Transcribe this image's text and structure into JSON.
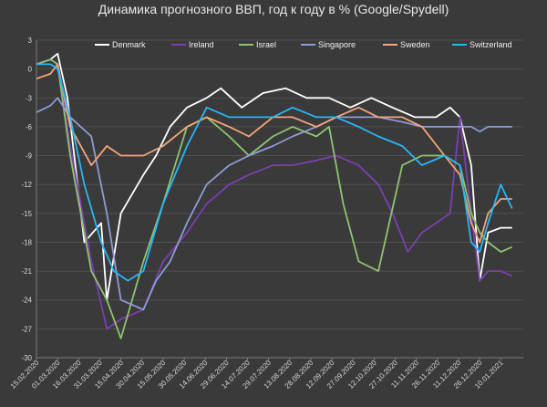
{
  "chart_data": {
    "type": "line",
    "title": "Динамика прогнозного ВВП, год к году в % (Google/Spydell)",
    "xlabel": "",
    "ylabel": "",
    "ylim": [
      -30,
      3
    ],
    "yticks": [
      3,
      0,
      -3,
      -6,
      -9,
      -12,
      -15,
      -18,
      -21,
      -24,
      -27,
      -30
    ],
    "x_tick_labels": [
      "15.02.2020",
      "01.03.2020",
      "16.03.2020",
      "31.03.2020",
      "15.04.2020",
      "30.04.2020",
      "15.05.2020",
      "30.05.2020",
      "14.06.2020",
      "29.06.2020",
      "14.07.2020",
      "29.07.2020",
      "13.08.2020",
      "28.08.2020",
      "12.09.2020",
      "27.09.2020",
      "12.10.2020",
      "27.10.2020",
      "11.11.2020",
      "26.11.2020",
      "11.12.2020",
      "26.12.2020",
      "10.01.2021"
    ],
    "grid": true,
    "legend_position": "top",
    "series": [
      {
        "name": "Denmark",
        "color": "#ffffff",
        "x": [
          "2020-02-15",
          "2020-02-25",
          "2020-03-01",
          "2020-03-08",
          "2020-03-20",
          "2020-04-01",
          "2020-04-05",
          "2020-04-15",
          "2020-05-01",
          "2020-05-10",
          "2020-05-20",
          "2020-06-01",
          "2020-06-15",
          "2020-06-25",
          "2020-07-10",
          "2020-07-25",
          "2020-08-10",
          "2020-08-25",
          "2020-09-10",
          "2020-09-25",
          "2020-10-10",
          "2020-10-25",
          "2020-11-10",
          "2020-11-25",
          "2020-12-05",
          "2020-12-12",
          "2020-12-20",
          "2020-12-26",
          "2021-01-01",
          "2021-01-10",
          "2021-01-18"
        ],
        "values": [
          0.5,
          1.0,
          1.6,
          -3,
          -18,
          -16,
          -24,
          -15,
          -11,
          -9,
          -6,
          -4,
          -3,
          -2,
          -4,
          -2.5,
          -2,
          -3,
          -3,
          -4,
          -3,
          -4,
          -5,
          -5,
          -4,
          -5,
          -10,
          -22,
          -17,
          -16.5,
          -16.5
        ]
      },
      {
        "name": "Ireland",
        "color": "#7b3fb0",
        "x": [
          "2020-02-15",
          "2020-02-25",
          "2020-03-01",
          "2020-03-10",
          "2020-03-25",
          "2020-04-05",
          "2020-04-15",
          "2020-05-01",
          "2020-05-15",
          "2020-06-01",
          "2020-06-15",
          "2020-07-01",
          "2020-07-15",
          "2020-08-01",
          "2020-08-15",
          "2020-09-01",
          "2020-09-15",
          "2020-10-01",
          "2020-10-15",
          "2020-10-25",
          "2020-11-05",
          "2020-11-15",
          "2020-11-25",
          "2020-12-05",
          "2020-12-12",
          "2020-12-20",
          "2020-12-26",
          "2021-01-01",
          "2021-01-10",
          "2021-01-18"
        ],
        "values": [
          0.5,
          1.0,
          0.5,
          -8,
          -20,
          -27,
          -26,
          -25,
          -20,
          -17,
          -14,
          -12,
          -11,
          -10,
          -10,
          -9.5,
          -9,
          -10,
          -12,
          -15,
          -19,
          -17,
          -16,
          -15,
          -5,
          -15,
          -22,
          -21,
          -21,
          -21.5
        ]
      },
      {
        "name": "Israel",
        "color": "#8fc370",
        "x": [
          "2020-02-15",
          "2020-02-25",
          "2020-03-01",
          "2020-03-10",
          "2020-03-25",
          "2020-04-05",
          "2020-04-15",
          "2020-05-01",
          "2020-05-15",
          "2020-06-01",
          "2020-06-15",
          "2020-07-01",
          "2020-07-15",
          "2020-08-01",
          "2020-08-15",
          "2020-09-01",
          "2020-09-10",
          "2020-09-20",
          "2020-10-01",
          "2020-10-15",
          "2020-11-01",
          "2020-11-15",
          "2020-12-01",
          "2020-12-12",
          "2020-12-20",
          "2020-12-26",
          "2021-01-01",
          "2021-01-10",
          "2021-01-18"
        ],
        "values": [
          0.5,
          1.0,
          0.5,
          -9,
          -21,
          -24,
          -28,
          -20,
          -14,
          -6,
          -5,
          -7,
          -9,
          -7,
          -6,
          -7,
          -6,
          -14,
          -20,
          -21,
          -10,
          -9,
          -9,
          -10,
          -15,
          -17,
          -18,
          -19,
          -18.5
        ]
      },
      {
        "name": "Singapore",
        "color": "#8f9bd6",
        "x": [
          "2020-02-15",
          "2020-02-25",
          "2020-03-01",
          "2020-03-10",
          "2020-03-25",
          "2020-04-05",
          "2020-04-15",
          "2020-05-01",
          "2020-05-10",
          "2020-05-20",
          "2020-06-01",
          "2020-06-15",
          "2020-07-01",
          "2020-07-15",
          "2020-08-01",
          "2020-08-15",
          "2020-09-01",
          "2020-09-15",
          "2020-10-01",
          "2020-10-15",
          "2020-11-01",
          "2020-11-15",
          "2020-12-01",
          "2020-12-12",
          "2020-12-20",
          "2020-12-26",
          "2021-01-01",
          "2021-01-10",
          "2021-01-18"
        ],
        "values": [
          -4.5,
          -3.8,
          -3.0,
          -5,
          -7,
          -15,
          -24,
          -25,
          -22,
          -20,
          -16,
          -12,
          -10,
          -9,
          -8,
          -7,
          -6,
          -5,
          -5,
          -5,
          -5.5,
          -6,
          -6,
          -6,
          -6,
          -6.5,
          -6,
          -6,
          -6
        ]
      },
      {
        "name": "Sweden",
        "color": "#f4a57a",
        "x": [
          "2020-02-15",
          "2020-02-25",
          "2020-03-01",
          "2020-03-10",
          "2020-03-25",
          "2020-04-05",
          "2020-04-15",
          "2020-05-01",
          "2020-05-15",
          "2020-06-01",
          "2020-06-15",
          "2020-07-01",
          "2020-07-15",
          "2020-08-01",
          "2020-08-15",
          "2020-09-01",
          "2020-09-15",
          "2020-10-01",
          "2020-10-15",
          "2020-11-01",
          "2020-11-15",
          "2020-12-01",
          "2020-12-12",
          "2020-12-20",
          "2020-12-26",
          "2021-01-01",
          "2021-01-10",
          "2021-01-18"
        ],
        "values": [
          -1,
          -0.5,
          0.5,
          -6,
          -10,
          -8,
          -9,
          -9,
          -8,
          -6,
          -5,
          -6,
          -7,
          -5,
          -5,
          -6,
          -5,
          -4,
          -5,
          -5,
          -6,
          -9,
          -11,
          -16,
          -18,
          -15,
          -13.5,
          -13.5
        ]
      },
      {
        "name": "Switzerland",
        "color": "#29b6f6",
        "x": [
          "2020-02-15",
          "2020-02-25",
          "2020-03-01",
          "2020-03-10",
          "2020-03-20",
          "2020-04-01",
          "2020-04-10",
          "2020-04-20",
          "2020-05-01",
          "2020-05-15",
          "2020-06-01",
          "2020-06-15",
          "2020-07-01",
          "2020-07-15",
          "2020-08-01",
          "2020-08-15",
          "2020-09-01",
          "2020-09-15",
          "2020-10-01",
          "2020-10-15",
          "2020-11-01",
          "2020-11-15",
          "2020-12-01",
          "2020-12-12",
          "2020-12-20",
          "2020-12-26",
          "2021-01-01",
          "2021-01-10",
          "2021-01-18"
        ],
        "values": [
          0.5,
          0.5,
          0,
          -5,
          -12,
          -18,
          -21,
          -22,
          -21,
          -14,
          -8,
          -4,
          -5,
          -5,
          -5,
          -4,
          -5,
          -5,
          -6,
          -7,
          -8,
          -10,
          -9,
          -10,
          -18,
          -19,
          -16,
          -12,
          -14.5
        ]
      }
    ]
  }
}
